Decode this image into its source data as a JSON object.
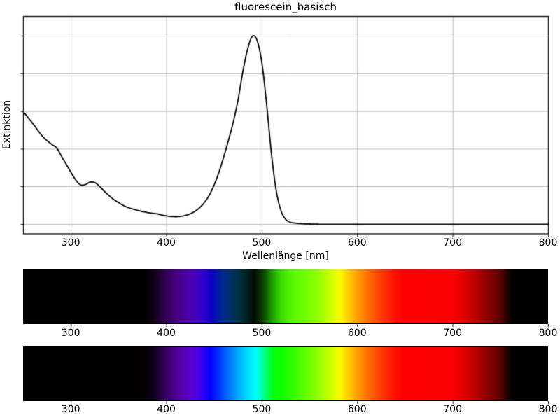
{
  "chart_data": [
    {
      "type": "line",
      "title": "fluorescein_basisch",
      "xlabel": "Wellenlänge [nm]",
      "ylabel": "Extinktion",
      "xlim": [
        250,
        800
      ],
      "ylim": [
        -0.05,
        1.104
      ],
      "x_ticks": [
        300,
        400,
        500,
        600,
        700,
        800
      ],
      "y_ticks": [
        0.0,
        0.2,
        0.4,
        0.6,
        0.8,
        1.0
      ],
      "y_tick_labels_visible": false,
      "grid": true,
      "grid_color": "#b0b0b0",
      "line_color": "#000000",
      "background": "#ffffff",
      "series": [
        {
          "name": "Extinktion",
          "x": [
            250,
            255,
            260,
            265,
            270,
            275,
            280,
            285,
            290,
            295,
            300,
            305,
            310,
            315,
            320,
            325,
            330,
            335,
            340,
            345,
            350,
            355,
            360,
            365,
            370,
            375,
            380,
            385,
            390,
            395,
            400,
            405,
            410,
            415,
            420,
            425,
            430,
            435,
            440,
            445,
            450,
            455,
            460,
            465,
            470,
            475,
            480,
            485,
            490,
            495,
            500,
            505,
            510,
            515,
            520,
            525,
            530,
            535,
            540,
            550,
            560,
            580,
            600,
            650,
            700,
            750,
            800
          ],
          "y": [
            0.598,
            0.566,
            0.535,
            0.5,
            0.468,
            0.444,
            0.424,
            0.405,
            0.361,
            0.318,
            0.275,
            0.235,
            0.21,
            0.212,
            0.225,
            0.222,
            0.201,
            0.175,
            0.152,
            0.131,
            0.115,
            0.1,
            0.089,
            0.081,
            0.074,
            0.068,
            0.063,
            0.059,
            0.056,
            0.05,
            0.045,
            0.042,
            0.041,
            0.043,
            0.048,
            0.057,
            0.071,
            0.091,
            0.119,
            0.158,
            0.212,
            0.28,
            0.361,
            0.45,
            0.546,
            0.665,
            0.814,
            0.933,
            1.0,
            0.974,
            0.851,
            0.628,
            0.368,
            0.175,
            0.071,
            0.026,
            0.011,
            0.007,
            0.004,
            0.002,
            0.001,
            0.001,
            0.001,
            0.001,
            0.001,
            0.001,
            0.001
          ]
        }
      ]
    },
    {
      "type": "heatmap",
      "name": "transmitted_spectrum_strip",
      "xlim": [
        250,
        800
      ],
      "x_ticks": [
        300,
        400,
        500,
        600,
        700,
        800
      ],
      "gradient_stops": [
        {
          "wavelength": 250,
          "color": "#000000"
        },
        {
          "wavelength": 370,
          "color": "#000000"
        },
        {
          "wavelength": 378,
          "color": "#050007"
        },
        {
          "wavelength": 385,
          "color": "#0c0010"
        },
        {
          "wavelength": 395,
          "color": "#270040"
        },
        {
          "wavelength": 405,
          "color": "#3d006e"
        },
        {
          "wavelength": 415,
          "color": "#4b0092"
        },
        {
          "wavelength": 425,
          "color": "#4a00ad"
        },
        {
          "wavelength": 433,
          "color": "#3f00c2"
        },
        {
          "wavelength": 440,
          "color": "#2a00cf"
        },
        {
          "wavelength": 447,
          "color": "#0f00c4"
        },
        {
          "wavelength": 453,
          "color": "#0018aa"
        },
        {
          "wavelength": 460,
          "color": "#002a8a"
        },
        {
          "wavelength": 467,
          "color": "#00306a"
        },
        {
          "wavelength": 474,
          "color": "#00314a"
        },
        {
          "wavelength": 481,
          "color": "#002a2d"
        },
        {
          "wavelength": 487,
          "color": "#001716"
        },
        {
          "wavelength": 492,
          "color": "#000c06"
        },
        {
          "wavelength": 497,
          "color": "#0a2800"
        },
        {
          "wavelength": 503,
          "color": "#104d00"
        },
        {
          "wavelength": 509,
          "color": "#188c00"
        },
        {
          "wavelength": 515,
          "color": "#28bc00"
        },
        {
          "wavelength": 521,
          "color": "#3cdc00"
        },
        {
          "wavelength": 528,
          "color": "#50ee00"
        },
        {
          "wavelength": 536,
          "color": "#60fa00"
        },
        {
          "wavelength": 545,
          "color": "#6eff00"
        },
        {
          "wavelength": 560,
          "color": "#94ff00"
        },
        {
          "wavelength": 572,
          "color": "#ccff00"
        },
        {
          "wavelength": 580,
          "color": "#f4fa00"
        },
        {
          "wavelength": 584,
          "color": "#fff200"
        },
        {
          "wavelength": 590,
          "color": "#ffd000"
        },
        {
          "wavelength": 600,
          "color": "#ffa000"
        },
        {
          "wavelength": 612,
          "color": "#ff6c00"
        },
        {
          "wavelength": 625,
          "color": "#ff3c00"
        },
        {
          "wavelength": 638,
          "color": "#ff1400"
        },
        {
          "wavelength": 648,
          "color": "#ff0000"
        },
        {
          "wavelength": 700,
          "color": "#fb0000"
        },
        {
          "wavelength": 712,
          "color": "#e20000"
        },
        {
          "wavelength": 725,
          "color": "#ba0000"
        },
        {
          "wavelength": 738,
          "color": "#8a0000"
        },
        {
          "wavelength": 750,
          "color": "#5c0000"
        },
        {
          "wavelength": 757,
          "color": "#2c0000"
        },
        {
          "wavelength": 763,
          "color": "#000000"
        },
        {
          "wavelength": 800,
          "color": "#000000"
        }
      ]
    },
    {
      "type": "heatmap",
      "name": "reference_spectrum_strip",
      "xlim": [
        250,
        800
      ],
      "x_ticks": [
        300,
        400,
        500,
        600,
        700,
        800
      ],
      "gradient_stops": [
        {
          "wavelength": 250,
          "color": "#000000"
        },
        {
          "wavelength": 370,
          "color": "#000000"
        },
        {
          "wavelength": 378,
          "color": "#060008"
        },
        {
          "wavelength": 385,
          "color": "#0e0018"
        },
        {
          "wavelength": 395,
          "color": "#2b0048"
        },
        {
          "wavelength": 405,
          "color": "#43007e"
        },
        {
          "wavelength": 415,
          "color": "#5400aa"
        },
        {
          "wavelength": 425,
          "color": "#5a00cd"
        },
        {
          "wavelength": 433,
          "color": "#4b00e6"
        },
        {
          "wavelength": 440,
          "color": "#2600f8"
        },
        {
          "wavelength": 446,
          "color": "#0400ff"
        },
        {
          "wavelength": 453,
          "color": "#0026ff"
        },
        {
          "wavelength": 460,
          "color": "#0054ff"
        },
        {
          "wavelength": 468,
          "color": "#0080ff"
        },
        {
          "wavelength": 475,
          "color": "#00aaff"
        },
        {
          "wavelength": 482,
          "color": "#00ccff"
        },
        {
          "wavelength": 488,
          "color": "#00e9ff"
        },
        {
          "wavelength": 493,
          "color": "#00fbff"
        },
        {
          "wavelength": 497,
          "color": "#00ffd8"
        },
        {
          "wavelength": 501,
          "color": "#00ffa0"
        },
        {
          "wavelength": 506,
          "color": "#00ff5c"
        },
        {
          "wavelength": 511,
          "color": "#00ff1e"
        },
        {
          "wavelength": 516,
          "color": "#04ff00"
        },
        {
          "wavelength": 522,
          "color": "#12ff00"
        },
        {
          "wavelength": 535,
          "color": "#38ff00"
        },
        {
          "wavelength": 550,
          "color": "#6eff00"
        },
        {
          "wavelength": 560,
          "color": "#94ff00"
        },
        {
          "wavelength": 572,
          "color": "#ccff00"
        },
        {
          "wavelength": 580,
          "color": "#f4fa00"
        },
        {
          "wavelength": 584,
          "color": "#fff200"
        },
        {
          "wavelength": 590,
          "color": "#ffd000"
        },
        {
          "wavelength": 600,
          "color": "#ffa000"
        },
        {
          "wavelength": 612,
          "color": "#ff6c00"
        },
        {
          "wavelength": 625,
          "color": "#ff3c00"
        },
        {
          "wavelength": 638,
          "color": "#ff1400"
        },
        {
          "wavelength": 648,
          "color": "#ff0000"
        },
        {
          "wavelength": 700,
          "color": "#fb0000"
        },
        {
          "wavelength": 712,
          "color": "#e20000"
        },
        {
          "wavelength": 725,
          "color": "#ba0000"
        },
        {
          "wavelength": 738,
          "color": "#8a0000"
        },
        {
          "wavelength": 750,
          "color": "#5c0000"
        },
        {
          "wavelength": 757,
          "color": "#2c0000"
        },
        {
          "wavelength": 763,
          "color": "#000000"
        },
        {
          "wavelength": 800,
          "color": "#000000"
        }
      ]
    }
  ]
}
